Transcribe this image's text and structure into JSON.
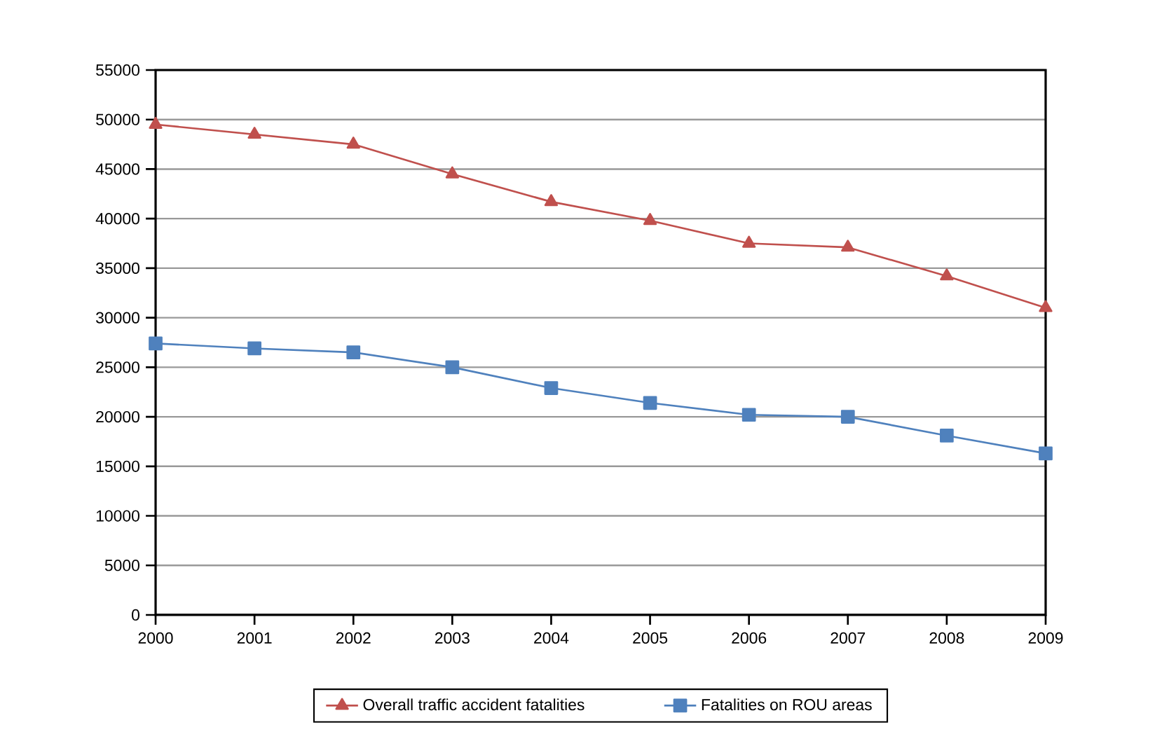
{
  "chart_data": {
    "type": "line",
    "x": [
      2000,
      2001,
      2002,
      2003,
      2004,
      2005,
      2006,
      2007,
      2008,
      2009
    ],
    "series": [
      {
        "name": "Overall traffic accident fatalities",
        "color": "#c0504d",
        "marker": "triangle",
        "values": [
          49500,
          48500,
          47500,
          44500,
          41700,
          39800,
          37500,
          37100,
          34200,
          31000
        ]
      },
      {
        "name": "Fatalities on ROU areas",
        "color": "#4f81bd",
        "marker": "square",
        "values": [
          27400,
          26900,
          26500,
          25000,
          22900,
          21400,
          20200,
          20000,
          18100,
          16300
        ]
      }
    ],
    "xlim": [
      2000,
      2009
    ],
    "xticks": [
      2000,
      2001,
      2002,
      2003,
      2004,
      2005,
      2006,
      2007,
      2008,
      2009
    ],
    "ylim": [
      0,
      55000
    ],
    "yticks": [
      0,
      5000,
      10000,
      15000,
      20000,
      25000,
      30000,
      35000,
      40000,
      45000,
      50000,
      55000
    ],
    "grid": "y",
    "legend": "bottom",
    "line_style": "solid"
  }
}
